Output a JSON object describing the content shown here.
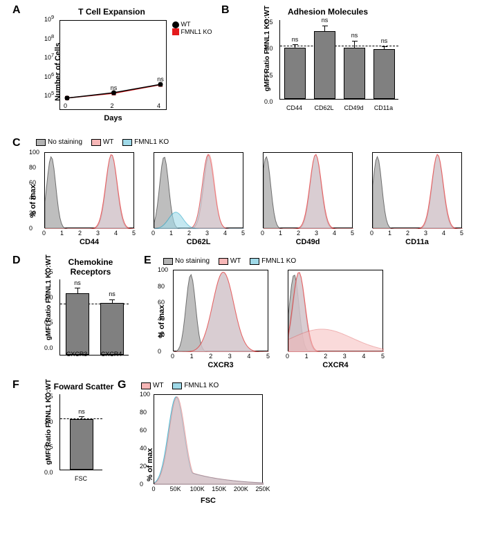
{
  "colors": {
    "wt_line": "#000000",
    "ko_line": "#e41a1c",
    "wt_fill": "#f7b7b7",
    "ko_fill": "#9fd9e8",
    "nostain_fill": "#b3b3b3",
    "bar_fill": "#808080",
    "bg": "#ffffff",
    "axis": "#000000"
  },
  "A": {
    "label": "A",
    "title": "T Cell Expansion",
    "x_label": "Days",
    "y_label": "Number of Cells",
    "x_ticks": [
      0,
      2,
      4
    ],
    "y_ticks": [
      "10^5",
      "10^6",
      "10^7",
      "10^8",
      "10^9"
    ],
    "y_log_min": 5,
    "y_log_max": 9,
    "legend": {
      "wt": "WT",
      "ko": "FMNL1 KO"
    },
    "wt_points": [
      [
        0,
        5.3
      ],
      [
        2,
        5.58
      ],
      [
        4,
        6.02
      ]
    ],
    "ko_points": [
      [
        0,
        5.3
      ],
      [
        2,
        5.55
      ],
      [
        4,
        6.0
      ]
    ],
    "ns_x": [
      2,
      4
    ],
    "ns_text": "ns",
    "err": 0.07
  },
  "B": {
    "label": "B",
    "title": "Adhesion Molecules",
    "y_label": "gMFI Ratio\nFMNL1 KO:WT",
    "y_ticks": [
      0.0,
      0.5,
      1.0,
      1.5
    ],
    "ref": 1.0,
    "categories": [
      "CD44",
      "CD62L",
      "CD49d",
      "CD11a"
    ],
    "values": [
      0.97,
      1.28,
      0.97,
      0.94
    ],
    "err": [
      0.05,
      0.1,
      0.12,
      0.05
    ],
    "ns": [
      "ns",
      "ns",
      "ns",
      "ns"
    ]
  },
  "C": {
    "label": "C",
    "legend": {
      "nostain": "No staining",
      "wt": "WT",
      "ko": "FMNL1 KO"
    },
    "y_label": "% of max",
    "y_ticks": [
      0,
      20,
      40,
      60,
      80,
      100
    ],
    "panels": [
      {
        "x_label": "CD44",
        "xmax": 5,
        "nostain_peak": 0.35,
        "signal_peak": 3.7
      },
      {
        "x_label": "CD62L",
        "xmax": 5,
        "nostain_peak": 0.55,
        "signal_peak": 3.0,
        "shoulder": true
      },
      {
        "x_label": "CD49d",
        "xmax": 5,
        "nostain_peak": 0.15,
        "signal_peak": 2.9
      },
      {
        "x_label": "CD11a",
        "xmax": 5,
        "nostain_peak": 0.25,
        "signal_peak": 3.6
      }
    ]
  },
  "D": {
    "label": "D",
    "title": "Chemokine Receptors",
    "y_label": "gMFI Ratio\nFMNL1 KO:WT",
    "y_ticks": [
      0.0,
      0.5,
      1.0,
      1.5
    ],
    "ref": 1.0,
    "categories": [
      "CXCR3",
      "CXCR4"
    ],
    "values": [
      1.22,
      1.02
    ],
    "err": [
      0.09,
      0.07
    ],
    "ns": [
      "ns",
      "ns"
    ]
  },
  "E": {
    "label": "E",
    "legend": {
      "nostain": "No staining",
      "wt": "WT",
      "ko": "FMNL1 KO"
    },
    "y_label": "% of max",
    "y_ticks": [
      0,
      20,
      40,
      60,
      80,
      100
    ],
    "panels": [
      {
        "x_label": "CXCR3",
        "xmax": 5,
        "nostain_peak": 0.9,
        "signal_peak": 2.6,
        "broad": true
      },
      {
        "x_label": "CXCR4",
        "xmax": 5,
        "nostain_peak": 0.3,
        "signal_peak": 0.55,
        "tail": true
      }
    ]
  },
  "F": {
    "label": "F",
    "title": "Foward Scatter",
    "y_label": "gMFI Ratio\nFMNL1 KO:WT",
    "y_ticks": [
      0.0,
      0.5,
      1.0,
      1.5
    ],
    "ref": 1.0,
    "categories": [
      "FSC"
    ],
    "values": [
      1.0
    ],
    "err": [
      0.04
    ],
    "ns": [
      "ns"
    ]
  },
  "G": {
    "label": "G",
    "legend": {
      "wt": "WT",
      "ko": "FMNL1 KO"
    },
    "y_label": "% of max",
    "y_ticks": [
      0,
      20,
      40,
      60,
      80,
      100
    ],
    "x_label": "FSC",
    "x_ticks": [
      "0",
      "50K",
      "100K",
      "150K",
      "200K",
      "250K"
    ],
    "peak_x": 50,
    "xmax": 250
  },
  "layout": {
    "hist_w": 140,
    "hist_h": 110,
    "bar_block_w": 170,
    "bar_block_h": 115
  }
}
